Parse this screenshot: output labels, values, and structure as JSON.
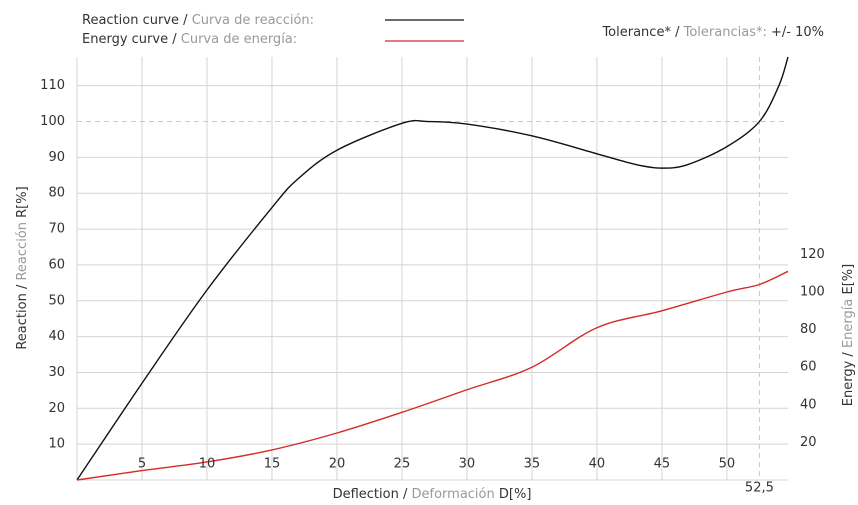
{
  "chart_data": {
    "type": "line",
    "separator": "/",
    "x_label": {
      "en": "Deflection",
      "es": "Deformación",
      "unit": "D[%]"
    },
    "y_label": {
      "en": "Reaction",
      "es": "Reacción",
      "unit": "R[%]"
    },
    "y2_label": {
      "en": "Energy",
      "es": "Energía",
      "unit": "E[%]"
    },
    "tolerance": {
      "en": "Tolerance*",
      "es": "Tolerancias*:",
      "value": "+/- 10%"
    },
    "xlim": [
      0,
      54.7
    ],
    "xticks": [
      5,
      10,
      15,
      20,
      25,
      30,
      35,
      40,
      45,
      50,
      {
        "value": 52.5,
        "label": "52,5"
      }
    ],
    "ylim": [
      0,
      118
    ],
    "yticks": [
      10,
      20,
      30,
      40,
      50,
      60,
      70,
      80,
      90,
      100,
      110
    ],
    "y2lim": [
      0,
      225
    ],
    "y2ticks": [
      20,
      40,
      60,
      80,
      100,
      120
    ],
    "highlight_x": 52.5,
    "highlight_y": 100,
    "grid": true,
    "series": [
      {
        "name": "Reaction curve",
        "name_es": "Curva de reacción:",
        "color": "#111111",
        "x": [
          0,
          5,
          10,
          15,
          17,
          20,
          25,
          27,
          30,
          35,
          40,
          43,
          45,
          47,
          50,
          52.5,
          54,
          54.7
        ],
        "values": [
          0,
          27,
          53,
          76,
          84,
          92,
          99.5,
          100,
          99.3,
          96,
          91,
          88,
          87,
          88,
          93,
          100,
          110,
          118
        ]
      },
      {
        "name": "Energy curve",
        "name_es": "Curva de energía:",
        "color": "#d42a2a",
        "axis": "y2",
        "x": [
          0,
          5,
          10,
          15,
          20,
          25,
          30,
          35,
          40,
          45,
          50,
          52.5,
          54.7
        ],
        "values": [
          0,
          5,
          9.6,
          16,
          25,
          36,
          48,
          60,
          81,
          90,
          100,
          104,
          111
        ]
      }
    ]
  }
}
